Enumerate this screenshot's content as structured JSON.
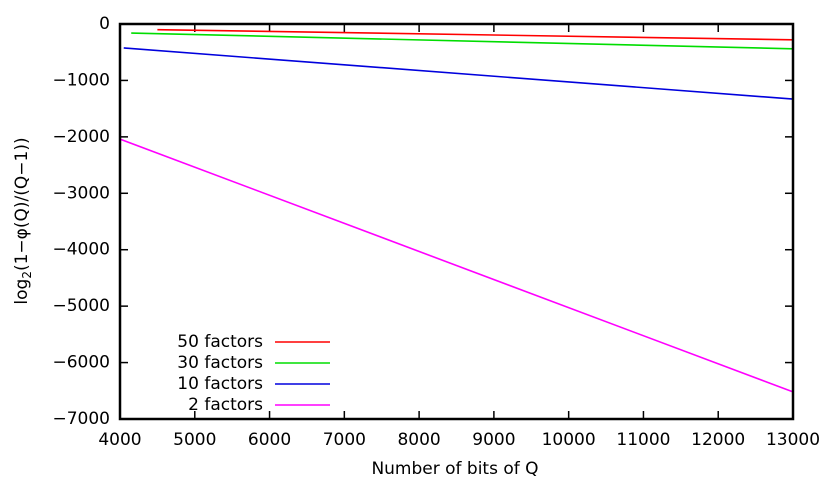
{
  "chart_data": {
    "type": "line",
    "xlabel": "Number of bits of Q",
    "ylabel": {
      "base": "log",
      "subscript": "2",
      "rest": "(1−φ(Q)/(Q−1))"
    },
    "xlim": [
      4000,
      13000
    ],
    "ylim": [
      -7000,
      0
    ],
    "xticks": [
      4000,
      5000,
      6000,
      7000,
      8000,
      9000,
      10000,
      11000,
      12000,
      13000
    ],
    "yticks": [
      {
        "value": -7000,
        "label": "−7000"
      },
      {
        "value": -6000,
        "label": "−6000"
      },
      {
        "value": -5000,
        "label": "−5000"
      },
      {
        "value": -4000,
        "label": "−4000"
      },
      {
        "value": -3000,
        "label": "−3000"
      },
      {
        "value": -2000,
        "label": "−2000"
      },
      {
        "value": -1000,
        "label": "−1000"
      },
      0
    ],
    "legend": "lower left",
    "series": [
      {
        "name": "50 factors",
        "color": "#ff0000",
        "x": [
          4500,
          13000
        ],
        "values": [
          -100,
          -280
        ]
      },
      {
        "name": "30 factors",
        "color": "#00dd00",
        "x": [
          4150,
          13000
        ],
        "values": [
          -160,
          -440
        ]
      },
      {
        "name": "10 factors",
        "color": "#0000dd",
        "x": [
          4050,
          13000
        ],
        "values": [
          -425,
          -1330
        ]
      },
      {
        "name": "2 factors",
        "color": "#ff00ff",
        "x": [
          4000,
          13000
        ],
        "values": [
          -2040,
          -6520
        ]
      }
    ]
  }
}
